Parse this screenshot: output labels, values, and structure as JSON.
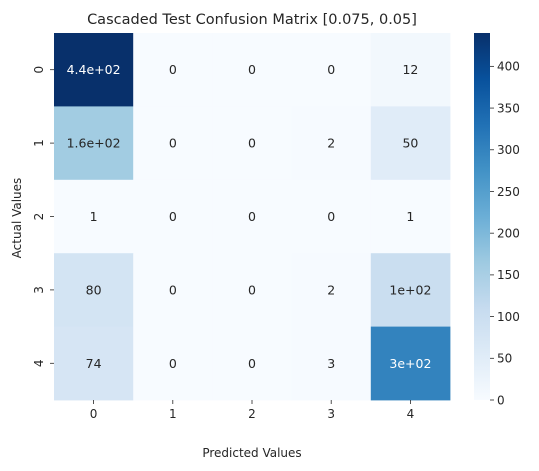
{
  "chart_data": {
    "type": "heatmap",
    "title": "Cascaded Test Confusion Matrix [0.075, 0.05]",
    "xlabel": "Predicted Values",
    "ylabel": "Actual Values",
    "x_categories": [
      "0",
      "1",
      "2",
      "3",
      "4"
    ],
    "y_categories": [
      "0",
      "1",
      "2",
      "3",
      "4"
    ],
    "values": [
      [
        440,
        0,
        0,
        0,
        12
      ],
      [
        160,
        0,
        0,
        2,
        50
      ],
      [
        1,
        0,
        0,
        0,
        1
      ],
      [
        80,
        0,
        0,
        2,
        100
      ],
      [
        74,
        0,
        0,
        3,
        300
      ]
    ],
    "cell_labels": [
      [
        "4.4e+02",
        "0",
        "0",
        "0",
        "12"
      ],
      [
        "1.6e+02",
        "0",
        "0",
        "2",
        "50"
      ],
      [
        "1",
        "0",
        "0",
        "0",
        "1"
      ],
      [
        "80",
        "0",
        "0",
        "2",
        "1e+02"
      ],
      [
        "74",
        "0",
        "0",
        "3",
        "3e+02"
      ]
    ],
    "colormap": "Blues",
    "colorbar": {
      "range": [
        0,
        440
      ],
      "ticks": [
        0,
        50,
        100,
        150,
        200,
        250,
        300,
        350,
        400
      ],
      "tick_labels": [
        "0",
        "50",
        "100",
        "150",
        "200",
        "250",
        "300",
        "350",
        "400"
      ]
    }
  }
}
